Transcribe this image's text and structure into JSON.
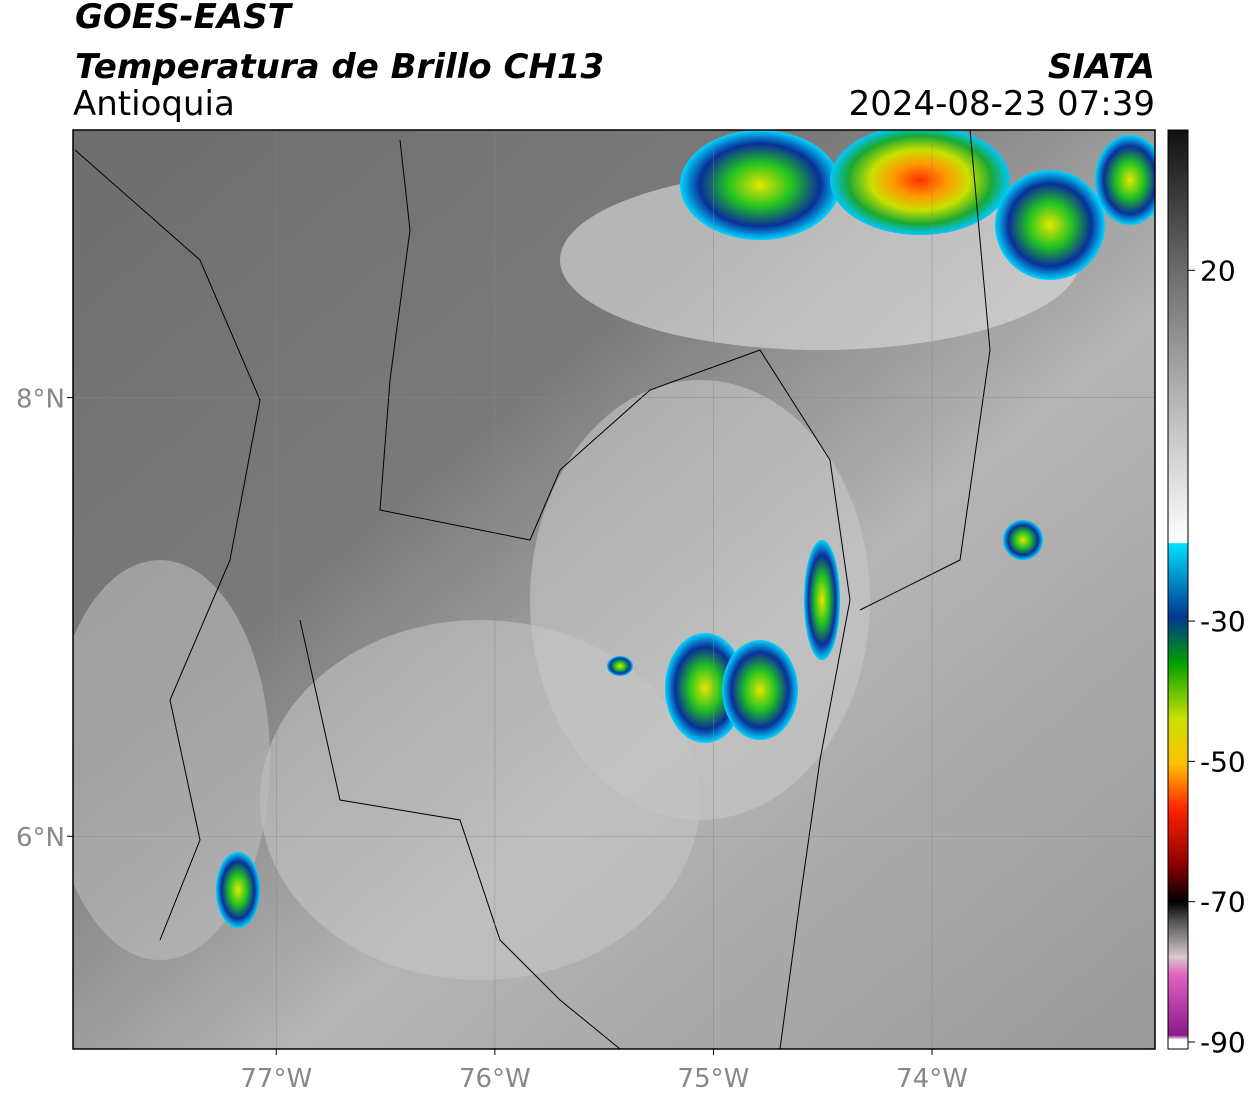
{
  "header": {
    "title": "GOES-EAST",
    "subtitle": "Temperatura de Brillo CH13",
    "region": "Antioquia",
    "source": "SIATA",
    "datetime": "2024-08-23 07:39"
  },
  "map": {
    "xlim": [
      -77.93,
      -72.98
    ],
    "ylim": [
      5.03,
      9.22
    ],
    "xticks": [
      {
        "value": -77,
        "label": "77°W"
      },
      {
        "value": -76,
        "label": "76°W"
      },
      {
        "value": -75,
        "label": "75°W"
      },
      {
        "value": -74,
        "label": "74°W"
      }
    ],
    "yticks": [
      {
        "value": 8,
        "label": "8°N"
      },
      {
        "value": 6,
        "label": "6°N"
      }
    ]
  },
  "colorbar": {
    "lim": [
      -91,
      40
    ],
    "ticks": [
      20,
      -30,
      -50,
      -70,
      -90
    ]
  }
}
